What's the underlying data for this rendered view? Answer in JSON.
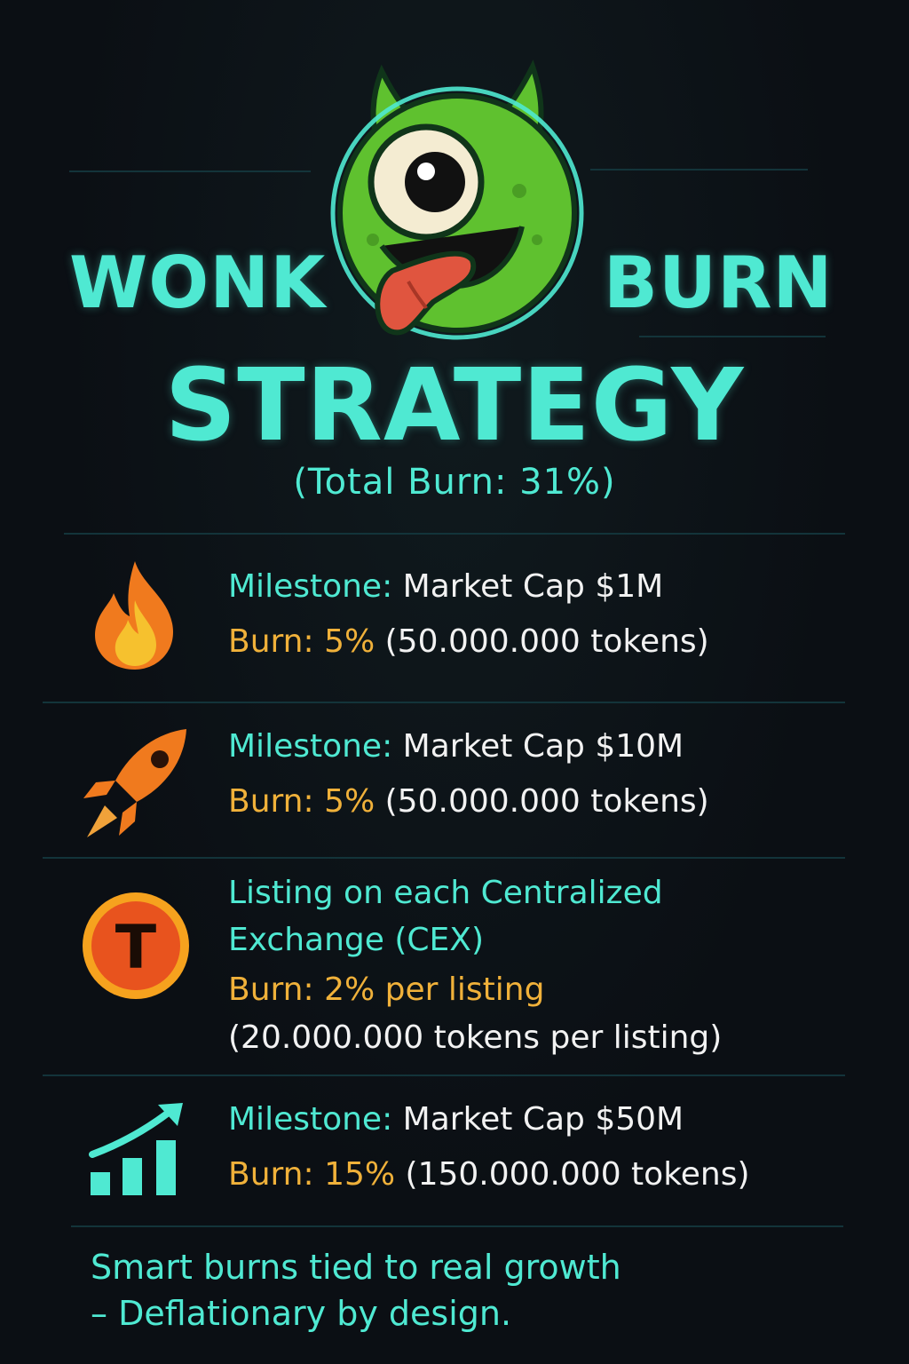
{
  "header": {
    "word_left": "WONK",
    "word_right": "BURN",
    "subtitle": "STRATEGY",
    "total_burn": "(Total Burn: 31%)"
  },
  "milestones": [
    {
      "icon": "flame-icon",
      "label": "Milestone:",
      "value": "Market Cap $1M",
      "burn_label": "Burn: 5%",
      "burn_detail": "(50.000.000 tokens)"
    },
    {
      "icon": "rocket-icon",
      "label": "Milestone:",
      "value": "Market Cap $10M",
      "burn_label": "Burn: 5%",
      "burn_detail": "(50.000.000 tokens)"
    },
    {
      "icon": "token-coin-icon",
      "coin_letter": "T",
      "label_line1": "Listing on each Centralized",
      "label_line2": "Exchange (CEX)",
      "burn_label": "Burn: 2% per listing",
      "burn_detail": "(20.000.000 tokens per listing)"
    },
    {
      "icon": "growth-chart-icon",
      "label": "Milestone:",
      "value": "Market Cap $50M",
      "burn_label": "Burn: 15%",
      "burn_detail": "(150.000.000 tokens)"
    }
  ],
  "footer": {
    "line1": "Smart burns tied to real growth",
    "line2": "– Deflationary by design."
  },
  "colors": {
    "teal": "#4fe9d2",
    "amber": "#f0b13a",
    "background": "#0b0f14",
    "mascot_green": "#5fc12f"
  }
}
